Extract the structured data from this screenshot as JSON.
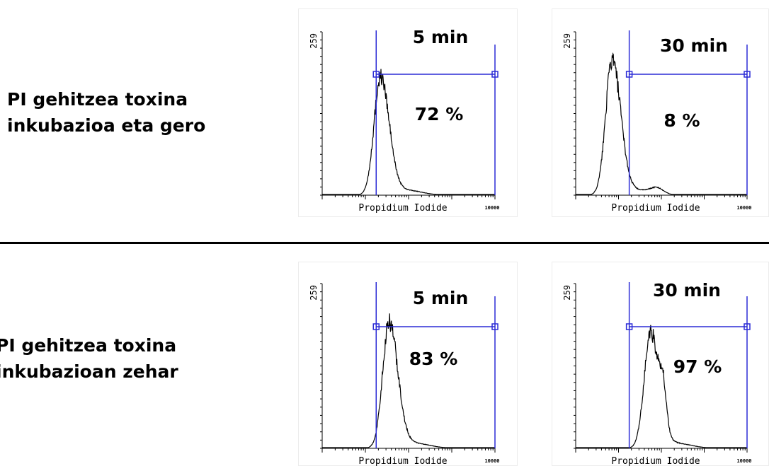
{
  "rows": [
    {
      "label_line1": "PI gehitzea toxina",
      "label_line2": "inkubazioa eta gero"
    },
    {
      "label_line1": "PI gehitzea toxina",
      "label_line2": "inkubazioan zehar"
    }
  ],
  "colors": {
    "gate": "#2b2bd6",
    "trace": "#000000",
    "divider": "#000000"
  },
  "chart_data": [
    {
      "type": "histogram",
      "time_label": "5 min",
      "percent_label": "72 %",
      "gated_percent": 72,
      "xlabel": "Propidium Iodide",
      "x_max_label": "10000",
      "y_max_label": "259",
      "x_scale": "log",
      "gate_start_decade": 1.25,
      "peak_decade": 1.35,
      "peak_level": 0.72
    },
    {
      "type": "histogram",
      "time_label": "30 min",
      "percent_label": "8 %",
      "gated_percent": 8,
      "xlabel": "Propidium Iodide",
      "x_max_label": "10000",
      "y_max_label": "259",
      "x_scale": "log",
      "gate_start_decade": 1.25,
      "peak_decade": 0.85,
      "peak_level": 0.82
    },
    {
      "type": "histogram",
      "time_label": "5 min",
      "percent_label": "83  %",
      "gated_percent": 83,
      "xlabel": "Propidium Iodide",
      "x_max_label": "10000",
      "y_max_label": "259",
      "x_scale": "log",
      "gate_start_decade": 1.25,
      "peak_decade": 1.55,
      "peak_level": 0.76
    },
    {
      "type": "histogram",
      "time_label": "30 min",
      "percent_label": "97 %",
      "gated_percent": 97,
      "xlabel": "Propidium Iodide",
      "x_max_label": "10000",
      "y_max_label": "259",
      "x_scale": "log",
      "gate_start_decade": 1.25,
      "peak_decade": 1.75,
      "peak_level": 0.7
    }
  ]
}
